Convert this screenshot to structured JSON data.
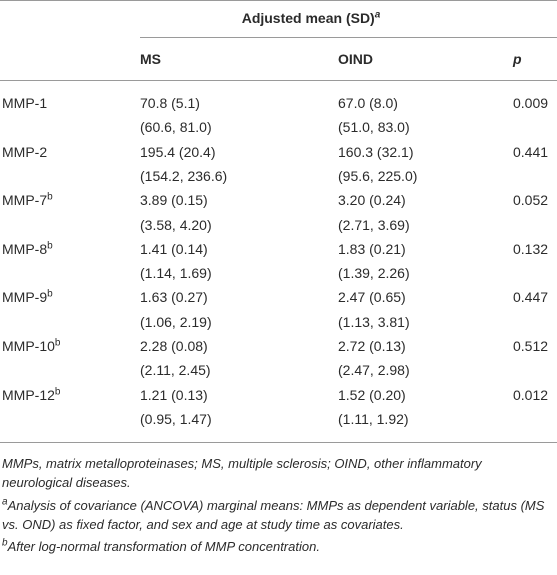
{
  "table": {
    "header": {
      "group": "Adjusted mean (SD)",
      "group_note": "a",
      "columns": [
        "MS",
        "OIND",
        "p"
      ]
    },
    "rows": [
      {
        "label": "MMP-1",
        "ms": [
          "70.8 (5.1)",
          "(60.6, 81.0)"
        ],
        "oind": [
          "67.0 (8.0)",
          "(51.0, 83.0)"
        ],
        "p": "0.009"
      },
      {
        "label": "MMP-2",
        "ms": [
          "195.4 (20.4)",
          "(154.2, 236.6)"
        ],
        "oind": [
          "160.3 (32.1)",
          "(95.6, 225.0)"
        ],
        "p": "0.441"
      },
      {
        "label": "MMP-7",
        "note": "b",
        "ms": [
          "3.89 (0.15)",
          "(3.58, 4.20)"
        ],
        "oind": [
          "3.20 (0.24)",
          "(2.71, 3.69)"
        ],
        "p": "0.052"
      },
      {
        "label": "MMP-8",
        "note": "b",
        "ms": [
          "1.41 (0.14)",
          "(1.14, 1.69)"
        ],
        "oind": [
          "1.83 (0.21)",
          "(1.39, 2.26)"
        ],
        "p": "0.132"
      },
      {
        "label": "MMP-9",
        "note": "b",
        "ms": [
          "1.63 (0.27)",
          "(1.06, 2.19)"
        ],
        "oind": [
          "2.47 (0.65)",
          "(1.13, 3.81)"
        ],
        "p": "0.447"
      },
      {
        "label": "MMP-10",
        "note": "b",
        "ms": [
          "2.28 (0.08)",
          "(2.11, 2.45)"
        ],
        "oind": [
          "2.72 (0.13)",
          "(2.47, 2.98)"
        ],
        "p": "0.512"
      },
      {
        "label": "MMP-12",
        "note": "b",
        "ms": [
          "1.21 (0.13)",
          "(0.95, 1.47)"
        ],
        "oind": [
          "1.52 (0.20)",
          "(1.11, 1.92)"
        ],
        "p": "0.012"
      }
    ]
  },
  "footnotes": [
    {
      "text": "MMPs, matrix metalloproteinases; MS, multiple sclerosis; OIND, other inflammatory neurological diseases."
    },
    {
      "mark": "a",
      "text": "Analysis of covariance (ANCOVA) marginal means: MMPs as dependent variable, status (MS vs. OND) as fixed factor, and sex and age at study time as covariates."
    },
    {
      "mark": "b",
      "text": "After log-normal transformation of MMP concentration."
    }
  ]
}
